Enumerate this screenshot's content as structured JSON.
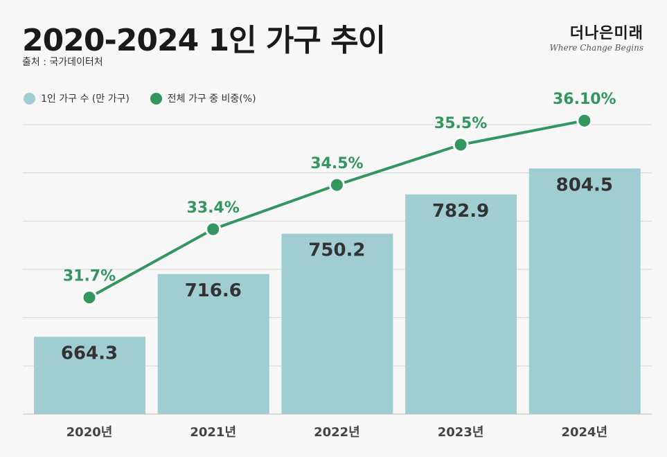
{
  "header": {
    "title": "2020-2024 1인 가구 추이",
    "source": "출처 : 국가데이터처",
    "logo_ko": "더나은미래",
    "logo_en": "Where Change Begins"
  },
  "colors": {
    "bar": "#9fcdd2",
    "line": "#33965f",
    "grid": "#d5d5d5",
    "value_text": "#333333"
  },
  "chart_data": {
    "type": "bar+line",
    "title": "2020-2024 1인 가구 추이",
    "categories": [
      "2020년",
      "2021년",
      "2022년",
      "2023년",
      "2024년"
    ],
    "series": [
      {
        "name": "1인 가구 수 (만 가구)",
        "type": "bar",
        "values": [
          664.3,
          716.6,
          750.2,
          782.9,
          804.5
        ],
        "labels": [
          "664.3",
          "716.6",
          "750.2",
          "782.9",
          "804.5"
        ],
        "ylim": [
          600,
          841
        ]
      },
      {
        "name": "전체 가구 중 비중(%)",
        "type": "line",
        "values": [
          31.7,
          33.4,
          34.5,
          35.5,
          36.1
        ],
        "labels": [
          "31.7%",
          "33.4%",
          "34.5%",
          "35.5%",
          "36.10%"
        ],
        "ylim": [
          28.8,
          36.0
        ]
      }
    ],
    "grid": true,
    "legend": "top-left"
  }
}
